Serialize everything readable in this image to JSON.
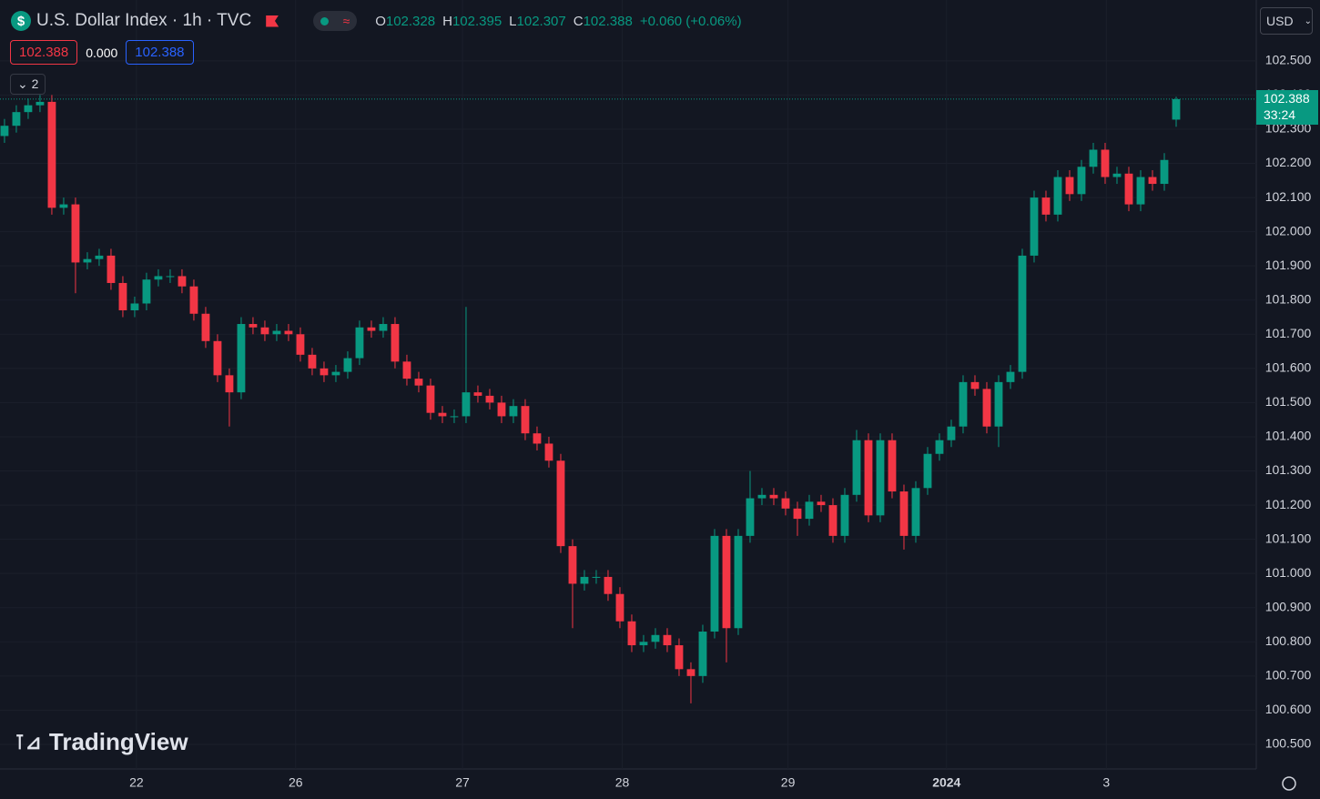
{
  "header": {
    "symbol_icon": "$",
    "title": "U.S. Dollar Index · 1h · TVC",
    "ohlc_keys": [
      "O",
      "H",
      "L",
      "C"
    ],
    "change": "+0.060 (+0.06%)",
    "spread": "0.000",
    "indicators_count": "2",
    "currency": "USD",
    "countdown": "33:24",
    "logo": "TradingView"
  },
  "chart_data": {
    "type": "candlestick",
    "up_color": "#089981",
    "down_color": "#f23645",
    "grid": true,
    "open": [
      102.28,
      102.31,
      102.35,
      102.37,
      102.38,
      102.07,
      102.08,
      101.91,
      101.92,
      101.93,
      101.85,
      101.77,
      101.79,
      101.86,
      101.87,
      101.87,
      101.84,
      101.76,
      101.68,
      101.58,
      101.53,
      101.73,
      101.72,
      101.7,
      101.71,
      101.7,
      101.64,
      101.6,
      101.58,
      101.59,
      101.63,
      101.72,
      101.71,
      101.73,
      101.62,
      101.57,
      101.55,
      101.47,
      101.46,
      101.46,
      101.53,
      101.52,
      101.5,
      101.46,
      101.49,
      101.41,
      101.38,
      101.33,
      101.08,
      100.97,
      100.99,
      100.99,
      100.94,
      100.86,
      100.79,
      100.8,
      100.82,
      100.79,
      100.72,
      100.7,
      100.83,
      101.11,
      100.84,
      101.11,
      101.22,
      101.23,
      101.22,
      101.19,
      101.16,
      101.21,
      101.2,
      101.11,
      101.23,
      101.39,
      101.17,
      101.39,
      101.24,
      101.11,
      101.25,
      101.35,
      101.39,
      101.43,
      101.56,
      101.54,
      101.43,
      101.56,
      101.59,
      101.93,
      102.1,
      102.05,
      102.16,
      102.11,
      102.19,
      102.24,
      102.16,
      102.17,
      102.08,
      102.16,
      102.14,
      102.328
    ],
    "high": [
      102.33,
      102.37,
      102.39,
      102.4,
      102.4,
      102.1,
      102.1,
      101.94,
      101.95,
      101.95,
      101.87,
      101.81,
      101.88,
      101.89,
      101.89,
      101.89,
      101.86,
      101.78,
      101.7,
      101.6,
      101.75,
      101.75,
      101.74,
      101.73,
      101.73,
      101.72,
      101.66,
      101.62,
      101.61,
      101.65,
      101.74,
      101.74,
      101.75,
      101.75,
      101.64,
      101.59,
      101.57,
      101.49,
      101.48,
      101.78,
      101.55,
      101.54,
      101.52,
      101.51,
      101.51,
      101.43,
      101.4,
      101.35,
      101.1,
      101.01,
      101.01,
      101.01,
      100.96,
      100.88,
      100.82,
      100.84,
      100.84,
      100.81,
      100.74,
      100.85,
      101.13,
      101.13,
      101.13,
      101.3,
      101.25,
      101.25,
      101.24,
      101.21,
      101.23,
      101.23,
      101.22,
      101.25,
      101.42,
      101.41,
      101.41,
      101.41,
      101.26,
      101.27,
      101.37,
      101.41,
      101.45,
      101.58,
      101.58,
      101.56,
      101.58,
      101.61,
      101.95,
      102.12,
      102.12,
      102.18,
      102.18,
      102.21,
      102.26,
      102.26,
      102.19,
      102.19,
      102.18,
      102.18,
      102.23,
      102.395
    ],
    "low": [
      102.26,
      102.29,
      102.33,
      102.35,
      102.05,
      102.05,
      101.82,
      101.89,
      101.9,
      101.83,
      101.75,
      101.75,
      101.77,
      101.84,
      101.85,
      101.82,
      101.74,
      101.66,
      101.56,
      101.43,
      101.51,
      101.7,
      101.68,
      101.68,
      101.68,
      101.62,
      101.58,
      101.56,
      101.56,
      101.57,
      101.61,
      101.69,
      101.69,
      101.6,
      101.55,
      101.53,
      101.45,
      101.44,
      101.44,
      101.44,
      101.5,
      101.48,
      101.44,
      101.44,
      101.39,
      101.36,
      101.31,
      101.06,
      100.84,
      100.95,
      100.97,
      100.92,
      100.84,
      100.77,
      100.77,
      100.78,
      100.77,
      100.7,
      100.62,
      100.68,
      100.81,
      100.74,
      100.82,
      101.09,
      101.2,
      101.2,
      101.17,
      101.11,
      101.14,
      101.18,
      101.09,
      101.09,
      101.21,
      101.15,
      101.15,
      101.22,
      101.07,
      101.09,
      101.23,
      101.33,
      101.37,
      101.41,
      101.52,
      101.41,
      101.37,
      101.54,
      101.57,
      101.91,
      102.03,
      102.03,
      102.09,
      102.09,
      102.17,
      102.14,
      102.14,
      102.06,
      102.06,
      102.12,
      102.12,
      102.307
    ],
    "close": [
      102.31,
      102.35,
      102.37,
      102.38,
      102.07,
      102.08,
      101.91,
      101.92,
      101.93,
      101.85,
      101.77,
      101.79,
      101.86,
      101.87,
      101.87,
      101.84,
      101.76,
      101.68,
      101.58,
      101.53,
      101.73,
      101.72,
      101.7,
      101.71,
      101.7,
      101.64,
      101.6,
      101.58,
      101.59,
      101.63,
      101.72,
      101.71,
      101.73,
      101.62,
      101.57,
      101.55,
      101.47,
      101.46,
      101.46,
      101.53,
      101.52,
      101.5,
      101.46,
      101.49,
      101.41,
      101.38,
      101.33,
      101.08,
      100.97,
      100.99,
      100.99,
      100.94,
      100.86,
      100.79,
      100.8,
      100.82,
      100.79,
      100.72,
      100.7,
      100.83,
      101.11,
      100.84,
      101.11,
      101.22,
      101.23,
      101.22,
      101.19,
      101.16,
      101.21,
      101.2,
      101.11,
      101.23,
      101.39,
      101.17,
      101.39,
      101.24,
      101.11,
      101.25,
      101.35,
      101.39,
      101.43,
      101.56,
      101.54,
      101.43,
      101.56,
      101.59,
      101.93,
      102.1,
      102.05,
      102.16,
      102.11,
      102.19,
      102.24,
      102.16,
      102.17,
      102.08,
      102.16,
      102.14,
      102.21,
      102.388
    ],
    "xlim": [
      -0.38,
      105.77
    ],
    "xticks": [
      {
        "value": 11.15,
        "label": "22"
      },
      {
        "value": 24.6,
        "label": "26"
      },
      {
        "value": 38.7,
        "label": "27"
      },
      {
        "value": 52.2,
        "label": "28"
      },
      {
        "value": 66.2,
        "label": "29"
      },
      {
        "value": 79.6,
        "label": "2024"
      },
      {
        "value": 93.1,
        "label": "3"
      }
    ],
    "ylim": [
      100.428,
      102.678
    ],
    "yticks": [
      {
        "value": 100.5,
        "label": "100.500"
      },
      {
        "value": 100.6,
        "label": "100.600"
      },
      {
        "value": 100.7,
        "label": "100.700"
      },
      {
        "value": 100.8,
        "label": "100.800"
      },
      {
        "value": 100.9,
        "label": "100.900"
      },
      {
        "value": 101.0,
        "label": "101.000"
      },
      {
        "value": 101.1,
        "label": "101.100"
      },
      {
        "value": 101.2,
        "label": "101.200"
      },
      {
        "value": 101.3,
        "label": "101.300"
      },
      {
        "value": 101.4,
        "label": "101.400"
      },
      {
        "value": 101.5,
        "label": "101.500"
      },
      {
        "value": 101.6,
        "label": "101.600"
      },
      {
        "value": 101.7,
        "label": "101.700"
      },
      {
        "value": 101.8,
        "label": "101.800"
      },
      {
        "value": 101.9,
        "label": "101.900"
      },
      {
        "value": 102.0,
        "label": "102.000"
      },
      {
        "value": 102.1,
        "label": "102.100"
      },
      {
        "value": 102.2,
        "label": "102.200"
      },
      {
        "value": 102.3,
        "label": "102.300"
      },
      {
        "value": 102.4,
        "label": "102.400"
      },
      {
        "value": 102.5,
        "label": "102.500"
      }
    ]
  }
}
